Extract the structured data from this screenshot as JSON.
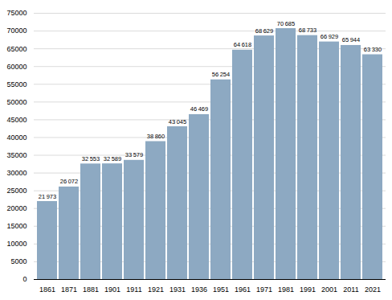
{
  "chart_data": {
    "type": "bar",
    "categories": [
      "1861",
      "1871",
      "1881",
      "1901",
      "1911",
      "1921",
      "1931",
      "1936",
      "1951",
      "1961",
      "1971",
      "1981",
      "1991",
      "2001",
      "2011",
      "2021"
    ],
    "values": [
      21973,
      26072,
      32553,
      32589,
      33579,
      38860,
      43045,
      46469,
      56254,
      64618,
      68629,
      70685,
      68733,
      66929,
      65944,
      63330
    ],
    "value_labels": [
      "21 973",
      "26 072",
      "32 553",
      "32 589",
      "33 579",
      "38 860",
      "43 045",
      "46 469",
      "56 254",
      "64 618",
      "68 629",
      "70 685",
      "68 733",
      "66 929",
      "65 944",
      "63 330"
    ],
    "data_labels": true,
    "color": "#8da9c2",
    "ylim": [
      0,
      75000
    ],
    "yticks": [
      0,
      5000,
      10000,
      15000,
      20000,
      25000,
      30000,
      35000,
      40000,
      45000,
      50000,
      55000,
      60000,
      65000,
      70000,
      75000
    ],
    "grid": true
  }
}
